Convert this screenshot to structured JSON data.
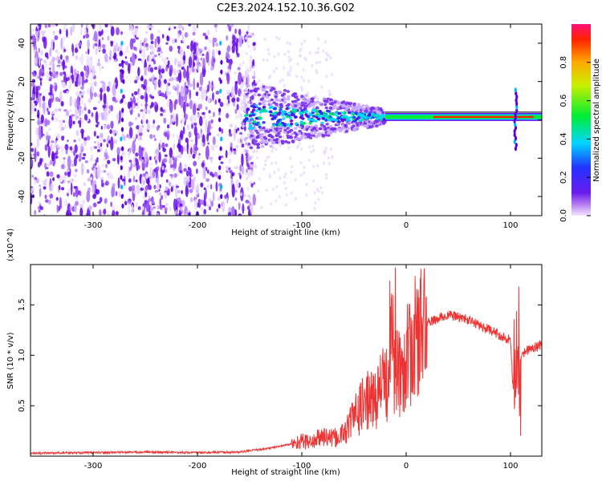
{
  "title": "C2E3.2024.152.10.36.G02",
  "chart_data": [
    {
      "type": "heatmap",
      "xlabel": "Height of straight line (km)",
      "ylabel": "Frequency (Hz)",
      "xlim": [
        -360,
        130
      ],
      "ylim": [
        -50,
        50
      ],
      "x_ticks": [
        -300,
        -200,
        -100,
        0,
        100
      ],
      "y_ticks": [
        -40,
        -20,
        0,
        20,
        40
      ],
      "colorbar": {
        "label": "Normalized spectral amplitude",
        "range": [
          0,
          1
        ],
        "ticks": [
          0.0,
          0.2,
          0.4,
          0.6,
          0.8
        ],
        "colormap": "purple-blue-cyan-green-yellow-red"
      },
      "features": {
        "noise_region_x": [
          -360,
          -155
        ],
        "scatter_region_x": [
          -155,
          -20
        ],
        "carrier_frequency_hz": 1.5,
        "carrier_region_x": [
          -20,
          130
        ],
        "streaks_x": [
          -272,
          -178,
          105
        ]
      },
      "grid": false
    },
    {
      "type": "line",
      "xlabel": "Height of straight line (km)",
      "ylabel": "SNR (10 * v/v)",
      "y_multiplier": "(x10^4)",
      "xlim": [
        -360,
        130
      ],
      "ylim": [
        0,
        1.9
      ],
      "x_ticks": [
        -300,
        -200,
        -100,
        0,
        100
      ],
      "y_ticks": [
        0.5,
        1.0,
        1.5
      ],
      "series": [
        {
          "color": "#ee3333",
          "x": [
            -360,
            -300,
            -250,
            -200,
            -160,
            -130,
            -110,
            -100,
            -90,
            -80,
            -70,
            -60,
            -55,
            -50,
            -45,
            -40,
            -35,
            -30,
            -25,
            -20,
            -15,
            -10,
            -5,
            0,
            5,
            10,
            15,
            20,
            30,
            40,
            50,
            60,
            70,
            80,
            90,
            100,
            104,
            107,
            110,
            115,
            120,
            130
          ],
          "y": [
            0.03,
            0.035,
            0.04,
            0.035,
            0.04,
            0.08,
            0.12,
            0.15,
            0.14,
            0.2,
            0.17,
            0.22,
            0.3,
            0.4,
            0.45,
            0.55,
            0.55,
            0.55,
            0.7,
            0.7,
            0.85,
            0.8,
            0.85,
            0.95,
            1.05,
            1.2,
            1.25,
            1.32,
            1.36,
            1.4,
            1.38,
            1.35,
            1.3,
            1.25,
            1.2,
            1.15,
            0.4,
            1.05,
            0.98,
            1.05,
            1.07,
            1.1
          ]
        }
      ],
      "grid": false
    }
  ]
}
